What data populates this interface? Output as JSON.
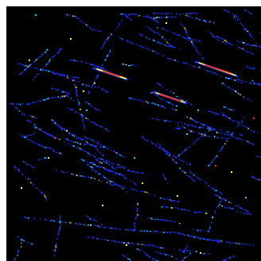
{
  "image": {
    "kind": "heatmap-style edge detection on black background",
    "colors": {
      "background": "#000000",
      "frame": "#ffffff",
      "low": "#1f35ff",
      "mid": "#22d3ff",
      "high": "#ffff33",
      "peak": "#ff2a1a"
    }
  }
}
